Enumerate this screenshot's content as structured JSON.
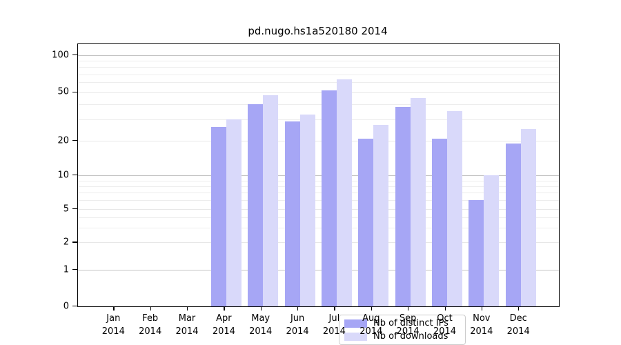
{
  "chart_data": {
    "type": "bar",
    "title": "pd.nugo.hs1a520180 2014",
    "categories": [
      "Jan 2014",
      "Feb 2014",
      "Mar 2014",
      "Apr 2014",
      "May 2014",
      "Jun 2014",
      "Jul 2014",
      "Aug 2014",
      "Sep 2014",
      "Oct 2014",
      "Nov 2014",
      "Dec 2014"
    ],
    "series": [
      {
        "name": "Nb of distinct IPs",
        "color": "#a6a6f5",
        "values": [
          0,
          0,
          0,
          26,
          40,
          29,
          52,
          21,
          38,
          21,
          6,
          19
        ]
      },
      {
        "name": "Nb of downloads",
        "color": "#d9d9fa",
        "values": [
          0,
          0,
          0,
          30,
          47,
          33,
          64,
          27,
          45,
          35,
          10,
          25
        ]
      }
    ],
    "xlabel": "",
    "ylabel": "",
    "y_axis": {
      "scale": "log-like with linear 0 segment",
      "ticks": [
        0,
        1,
        2,
        5,
        10,
        20,
        50,
        100
      ],
      "minor_gridlines": [
        3,
        4,
        6,
        7,
        8,
        9,
        30,
        40,
        60,
        70,
        80,
        90
      ],
      "mid_gridlines": [
        2,
        5,
        20,
        50
      ],
      "major_gridlines": [
        1,
        10,
        100
      ]
    },
    "legend": {
      "position": "lower center",
      "entries": [
        "Nb of distinct IPs",
        "Nb of downloads"
      ]
    },
    "grid": true,
    "colors": {
      "background": "#ffffff",
      "spine": "#000000",
      "major_grid": "#c3c3c3",
      "minor_grid": "#ededed",
      "legend_border": "#cccccc"
    }
  }
}
